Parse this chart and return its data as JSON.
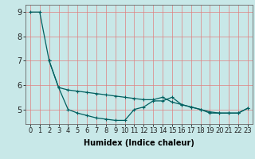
{
  "xlabel": "Humidex (Indice chaleur)",
  "bg_color": "#c8e8e8",
  "grid_color": "#e08080",
  "line_color": "#006060",
  "xlim": [
    -0.5,
    23.5
  ],
  "ylim": [
    4.4,
    9.3
  ],
  "xticks": [
    0,
    1,
    2,
    3,
    4,
    5,
    6,
    7,
    8,
    9,
    10,
    11,
    12,
    13,
    14,
    15,
    16,
    17,
    18,
    19,
    20,
    21,
    22,
    23
  ],
  "yticks": [
    5,
    6,
    7,
    8,
    9
  ],
  "line1_x": [
    0,
    1,
    2,
    3,
    4,
    5,
    6,
    7,
    8,
    9,
    10,
    11,
    12,
    13,
    14,
    15,
    16,
    17,
    18,
    19,
    20,
    21,
    22,
    23
  ],
  "line1_y": [
    9.0,
    9.0,
    7.0,
    5.9,
    5.8,
    5.75,
    5.7,
    5.65,
    5.6,
    5.55,
    5.5,
    5.45,
    5.4,
    5.4,
    5.5,
    5.3,
    5.2,
    5.1,
    5.0,
    4.9,
    4.85,
    4.85,
    4.85,
    5.05
  ],
  "line2_x": [
    2,
    3,
    4,
    5,
    6,
    7,
    8,
    9,
    10,
    11,
    12,
    13,
    14,
    15,
    16,
    17,
    18,
    19,
    20,
    21,
    22,
    23
  ],
  "line2_y": [
    7.0,
    5.9,
    5.0,
    4.85,
    4.75,
    4.65,
    4.6,
    4.55,
    4.55,
    5.0,
    5.1,
    5.35,
    5.35,
    5.5,
    5.2,
    5.1,
    5.0,
    4.85,
    4.85,
    4.85,
    4.85,
    5.05
  ],
  "tick_fontsize": 6,
  "xlabel_fontsize": 7
}
